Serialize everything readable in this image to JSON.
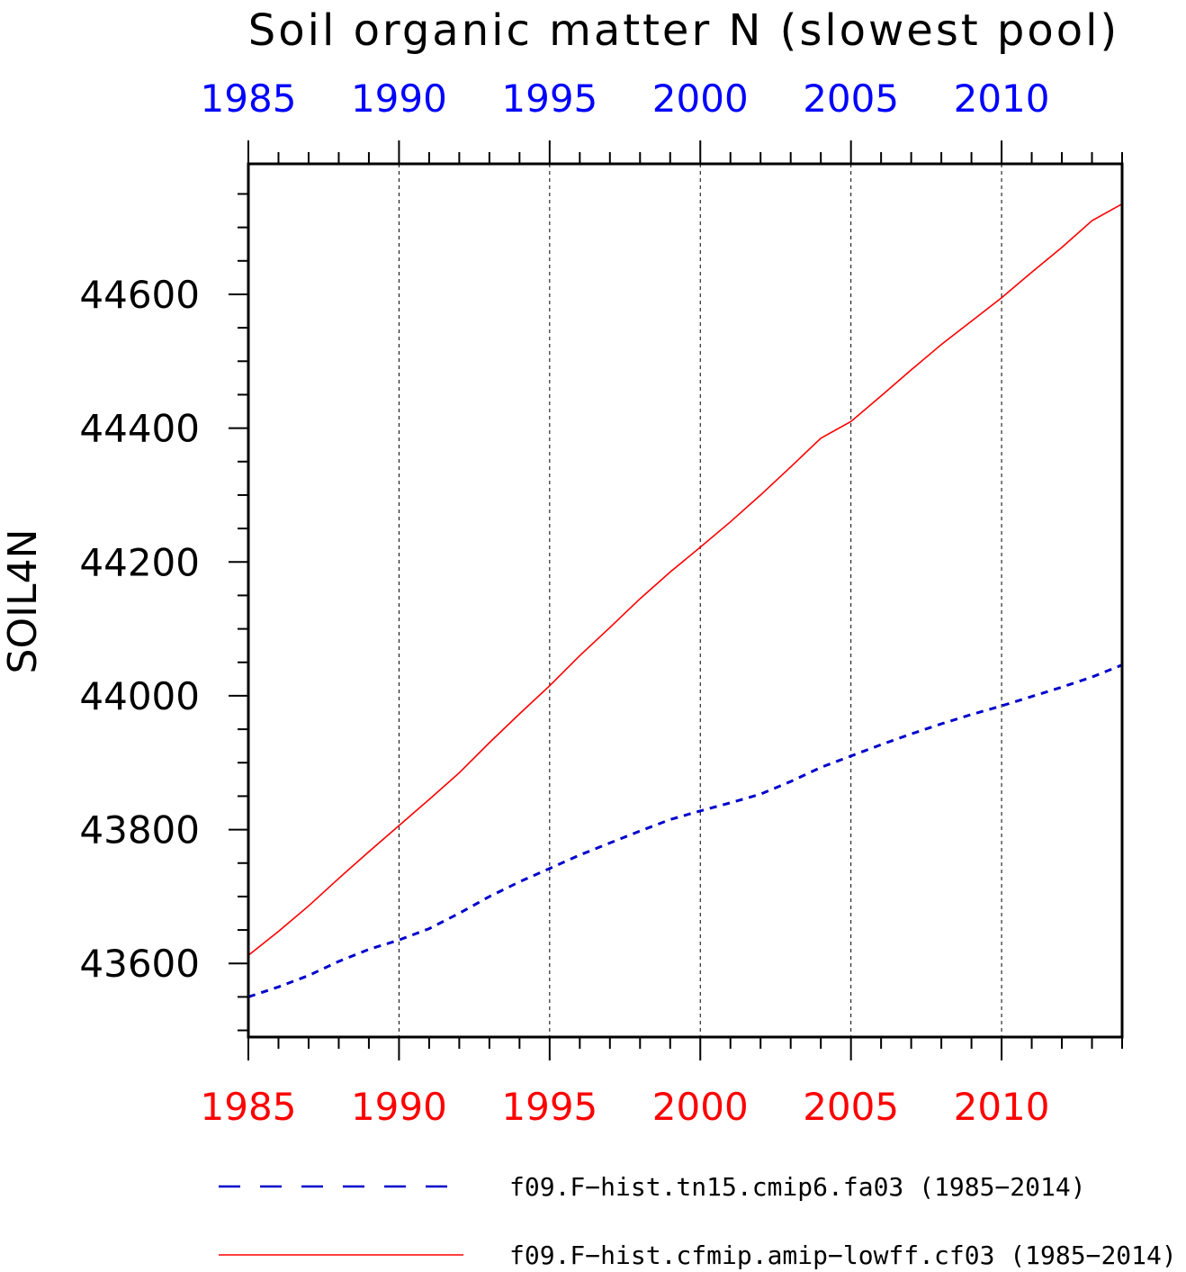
{
  "chart_data": {
    "type": "line",
    "title": "Soil organic matter N (slowest pool)",
    "xlabel": "",
    "ylabel": "SOIL4N",
    "x": [
      1985,
      1986,
      1987,
      1988,
      1989,
      1990,
      1991,
      1992,
      1993,
      1994,
      1995,
      1996,
      1997,
      1998,
      1999,
      2000,
      2001,
      2002,
      2003,
      2004,
      2005,
      2006,
      2007,
      2008,
      2009,
      2010,
      2011,
      2012,
      2013,
      2014
    ],
    "xlim": [
      1985,
      2014
    ],
    "ylim": [
      43490,
      44795
    ],
    "xticks_major": [
      1985,
      1990,
      1995,
      2000,
      2005,
      2010
    ],
    "xtick_labels": [
      "1985",
      "1990",
      "1995",
      "2000",
      "2005",
      "2010"
    ],
    "yticks_major": [
      43600,
      43800,
      44000,
      44200,
      44400,
      44600
    ],
    "ytick_labels": [
      "43600",
      "43800",
      "44000",
      "44200",
      "44400",
      "44600"
    ],
    "grid": "vertical dashed at major x ticks",
    "legend_position": "bottom",
    "series": [
      {
        "name": "f09.F−hist.tn15.cmip6.fa03 (1985−2014)",
        "color": "#0000cc",
        "style": "dashed",
        "values": [
          43550,
          43565,
          43582,
          43603,
          43621,
          43635,
          43652,
          43675,
          43700,
          43722,
          43742,
          43762,
          43780,
          43798,
          43815,
          43828,
          43840,
          43853,
          43872,
          43893,
          43910,
          43927,
          43943,
          43958,
          43972,
          43985,
          43999,
          44013,
          44028,
          44046
        ]
      },
      {
        "name": "f09.F−hist.cfmip.amip−lowff.cf03 (1985−2014)",
        "color": "#ff0000",
        "style": "solid",
        "values": [
          43612,
          43648,
          43686,
          43727,
          43767,
          43806,
          43845,
          43885,
          43930,
          43973,
          44015,
          44060,
          44102,
          44145,
          44185,
          44222,
          44260,
          44300,
          44342,
          44385,
          44410,
          44448,
          44487,
          44525,
          44560,
          44595,
          44633,
          44670,
          44710,
          44735
        ]
      }
    ]
  },
  "legend": {
    "entries": [
      {
        "label": "f09.F−hist.tn15.cmip6.fa03 (1985−2014)",
        "color": "#0000cc",
        "style": "dashed"
      },
      {
        "label": "f09.F−hist.cfmip.amip−lowff.cf03 (1985−2014)",
        "color": "#ff0000",
        "style": "solid"
      }
    ]
  },
  "colors": {
    "top_axis_labels": "#0000ff",
    "bottom_axis_labels": "#ff0000",
    "frame": "#000000"
  }
}
